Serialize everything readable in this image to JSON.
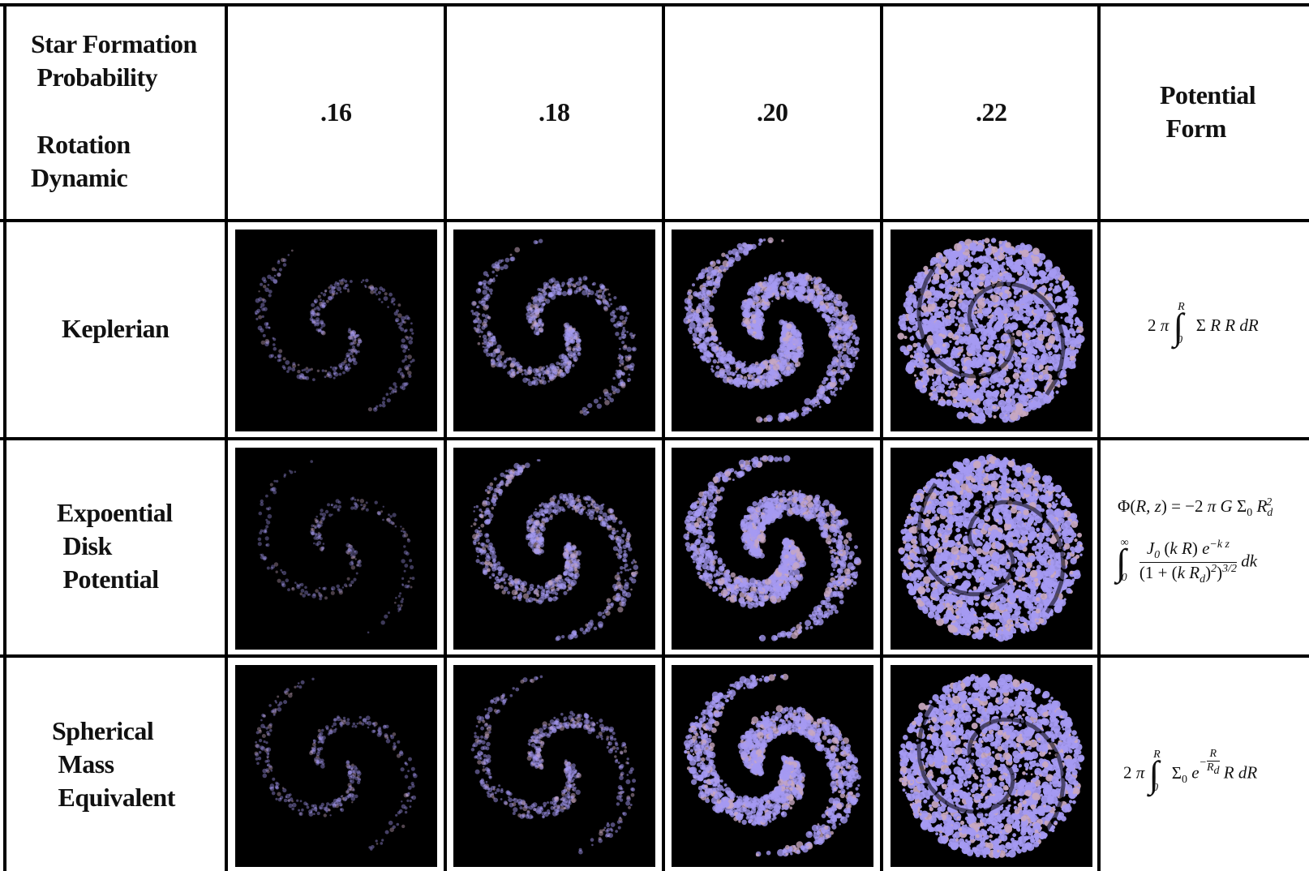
{
  "header": {
    "top_label": "Star Formation\n Probability",
    "bottom_label": " Rotation\nDynamic",
    "probabilities": [
      ".16",
      ".18",
      ".20",
      ".22"
    ],
    "right_label": "Potential\n Form"
  },
  "rows": [
    {
      "label": "Keplerian",
      "formula": "2 π ∫₀^R Σ R R dR",
      "levels": [
        0.1,
        0.3,
        0.68,
        0.95
      ]
    },
    {
      "label": "Expoential\n Disk\n Potential",
      "formula_line1": "Φ(R, z) = −2 π G Σ₀ R_d²",
      "formula_line2": "∫₀^∞ J₀ (k R) e^(−k z) / (1 + (k R_d)²)^(3/2) dk",
      "levels": [
        0.04,
        0.36,
        0.7,
        0.96
      ]
    },
    {
      "label": "Spherical\n Mass\n Equivalent",
      "formula": "2 π ∫₀^R Σ₀ e^(−R/R_d) R dR",
      "levels": [
        0.1,
        0.24,
        0.74,
        0.97
      ]
    }
  ],
  "colors": {
    "particle": "#a59af2",
    "particle_alt": "#c8a8c0",
    "background": "#000000"
  }
}
